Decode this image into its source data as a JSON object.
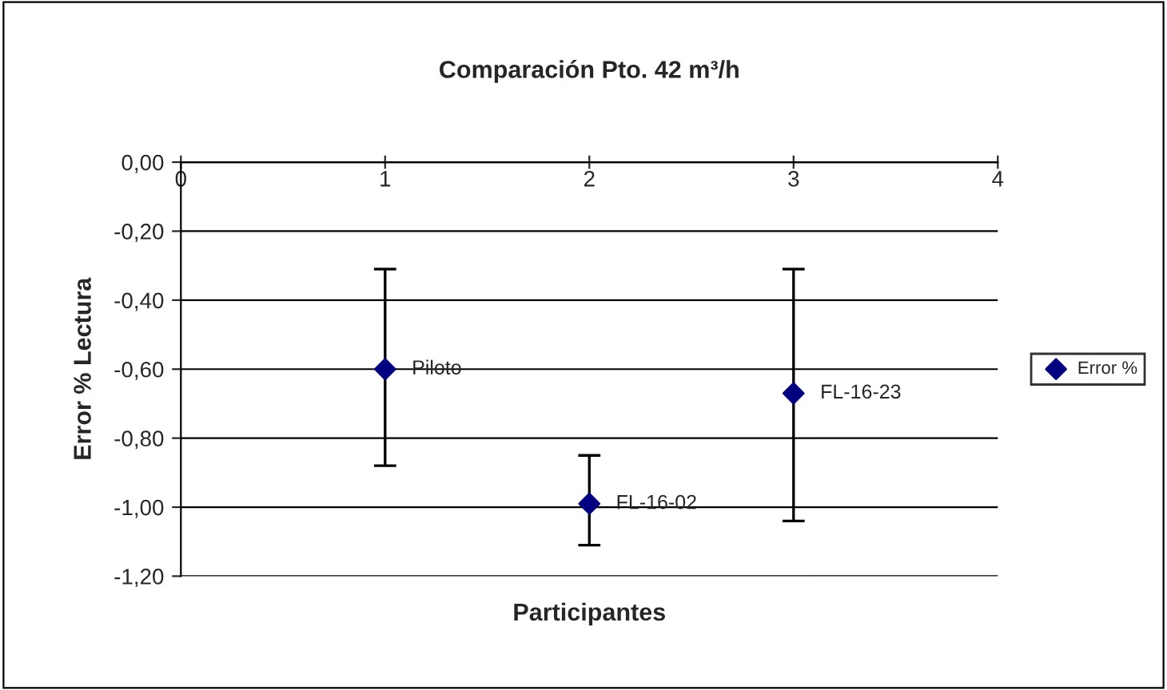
{
  "chart_data": {
    "type": "scatter",
    "title": "Comparación Pto. 42 m³/h",
    "xlabel": "Participantes",
    "ylabel": "Error % Lectura",
    "x": [
      1,
      2,
      3
    ],
    "series": [
      {
        "name": "Error %",
        "color": "#000080",
        "values": [
          -0.6,
          -0.99,
          -0.67
        ],
        "errors": [
          [
            -0.88,
            -0.31
          ],
          [
            -1.11,
            -0.85
          ],
          [
            -1.04,
            -0.31
          ]
        ]
      }
    ],
    "annotations": [
      {
        "text": "Piloto",
        "x": 1,
        "y": -0.6
      },
      {
        "text": "FL-16-02",
        "x": 2,
        "y": -0.99
      },
      {
        "text": "FL-16-23",
        "x": 3,
        "y": -0.67
      }
    ],
    "xlim": [
      0,
      4
    ],
    "xticks": [
      0,
      1,
      2,
      3,
      4
    ],
    "ylim": [
      -1.2,
      0
    ],
    "yticks": [
      {
        "value": -1.2,
        "label": "-1,20"
      },
      {
        "value": -1.0,
        "label": "-1,00"
      },
      {
        "value": -0.8,
        "label": "-0,80"
      },
      {
        "value": -0.6,
        "label": "-0,60"
      },
      {
        "value": -0.4,
        "label": "-0,40"
      },
      {
        "value": -0.2,
        "label": "-0,20"
      },
      {
        "value": 0,
        "label": "0,00"
      }
    ],
    "grid": "y",
    "legend": "right",
    "marker": "diamond"
  }
}
